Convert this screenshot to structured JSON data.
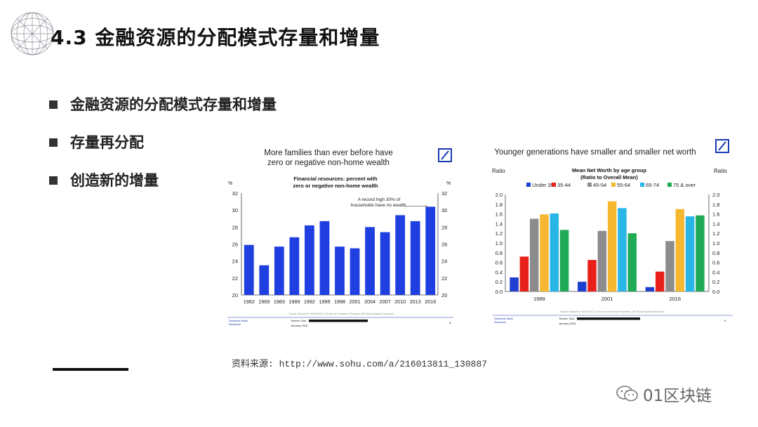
{
  "slide": {
    "title": "4.3  金融资源的分配模式存量和增量",
    "bullets": [
      "金融资源的分配模式存量和增量",
      "存量再分配",
      "创造新的增量"
    ],
    "source": "资料来源: http://www.sohu.com/a/216013811_130887",
    "watermark": "01区块链",
    "colors": {
      "accent": "#1f3fd0",
      "text": "#111111"
    }
  },
  "chart_data": [
    {
      "type": "bar",
      "title": "More families than ever before have zero or negative non-home wealth",
      "title_lines": [
        "More families than ever before have",
        "zero or negative non-home wealth"
      ],
      "subtitle": "Financial resources: percent with zero or negative non-home wealth",
      "subtitle_lines": [
        "Financial resources: percent with",
        "zero or negative non-home wealth"
      ],
      "ylabel_left": "%",
      "ylabel_right": "%",
      "ylim": [
        20,
        32
      ],
      "yticks": [
        20,
        22,
        24,
        26,
        28,
        30,
        32
      ],
      "categories": [
        "1962",
        "1969",
        "1983",
        "1989",
        "1992",
        "1995",
        "1998",
        "2001",
        "2004",
        "2007",
        "2010",
        "2013",
        "2016"
      ],
      "values": [
        25.9,
        23.5,
        25.7,
        26.8,
        28.2,
        28.7,
        25.7,
        25.5,
        28.0,
        27.4,
        29.4,
        28.7,
        30.4
      ],
      "annotation_lines": [
        "A record high 30% of",
        "households have no wealth."
      ],
      "color": "#1f3fe0",
      "source": "Source: Edward N. Wolff (2017), Survey of Consumer Finances, DB Global Markets Research",
      "footer_left": [
        "Deutsche Bank",
        "Research"
      ],
      "footer_mid": [
        "Torsten Slok,",
        "January 2018"
      ],
      "page": "8",
      "grid": false
    },
    {
      "type": "bar",
      "title": "Younger generations have smaller and smaller net worth",
      "subtitle": "Mean Net Worth by age group (Ratio to Overall Mean)",
      "subtitle_lines": [
        "Mean Net Worth by age group",
        "(Ratio to Overall Mean)"
      ],
      "ylabel_left": "Ratio",
      "ylabel_right": "Ratio",
      "ylim": [
        0.0,
        2.0
      ],
      "yticks": [
        "0.0",
        "0.2",
        "0.4",
        "0.6",
        "0.8",
        "1.0",
        "1.2",
        "1.4",
        "1.6",
        "1.8",
        "2.0"
      ],
      "categories": [
        "1989",
        "2001",
        "2016"
      ],
      "legend_position": "top",
      "series": [
        {
          "name": "Under 35",
          "color": "#1f3fd0",
          "values": [
            0.29,
            0.2,
            0.09
          ]
        },
        {
          "name": "35-44",
          "color": "#e8201a",
          "values": [
            0.72,
            0.65,
            0.41
          ]
        },
        {
          "name": "45-54",
          "color": "#8c8c8c",
          "values": [
            1.5,
            1.25,
            1.04
          ]
        },
        {
          "name": "55-64",
          "color": "#f5b830",
          "values": [
            1.59,
            1.86,
            1.7
          ]
        },
        {
          "name": "65-74",
          "color": "#29b6e6",
          "values": [
            1.61,
            1.72,
            1.55
          ]
        },
        {
          "name": "75 & over",
          "color": "#1faa55",
          "values": [
            1.27,
            1.2,
            1.57
          ]
        }
      ],
      "source": "Source: Edward N. Wolff (2017), Survey of Consumer Finances, DB Global Markets Research",
      "footer_left": [
        "Deutsche Bank",
        "Research"
      ],
      "footer_mid": [
        "Torsten Slok,",
        "January 2018"
      ],
      "page": "9",
      "grid": false
    }
  ]
}
